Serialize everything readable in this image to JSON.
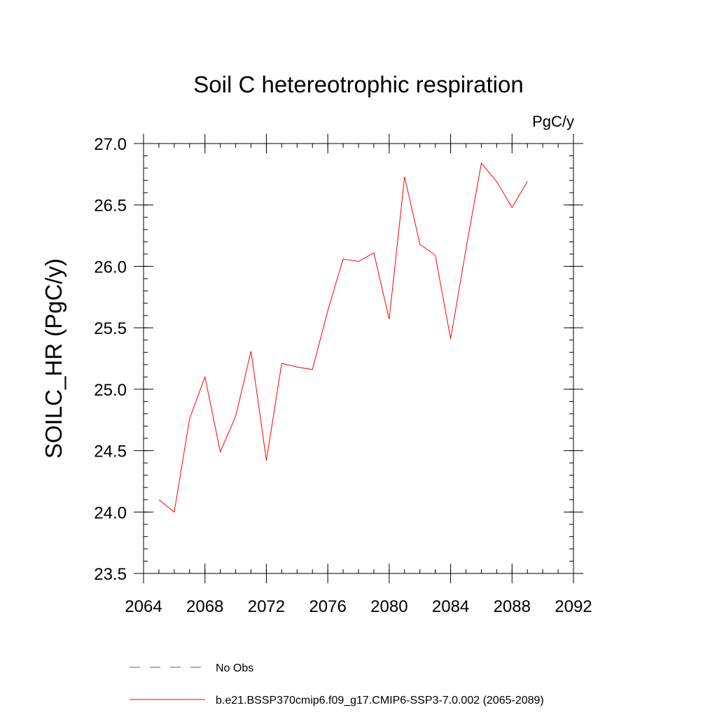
{
  "chart_data": {
    "type": "line",
    "title": "Soil C hetereotrophic respiration",
    "units": "PgC/y",
    "xlabel": "",
    "ylabel": "SOILC_HR  (PgC/y)",
    "xlim": [
      2064,
      2092
    ],
    "ylim": [
      23.5,
      27.0
    ],
    "x_ticks": [
      2064,
      2068,
      2072,
      2076,
      2080,
      2084,
      2088,
      2092
    ],
    "x_tick_labels": [
      "2064",
      "2068",
      "2072",
      "2076",
      "2080",
      "2084",
      "2088",
      "2092"
    ],
    "y_ticks": [
      23.5,
      24.0,
      24.5,
      25.0,
      25.5,
      26.0,
      26.5,
      27.0
    ],
    "y_tick_labels": [
      "23.5",
      "24.0",
      "24.5",
      "25.0",
      "25.5",
      "26.0",
      "26.5",
      "27.0"
    ],
    "grid": false,
    "legend_position": "bottom",
    "series": [
      {
        "name": "No Obs",
        "color": "#5a50c8",
        "dash": "dashed",
        "x": [],
        "y": []
      },
      {
        "name": "b.e21.BSSP370cmip6.f09_g17.CMIP6-SSP3-7.0.002 (2065-2089)",
        "color": "#ff0000",
        "dash": "solid",
        "x": [
          2065,
          2066,
          2067,
          2068,
          2069,
          2070,
          2071,
          2072,
          2073,
          2074,
          2075,
          2076,
          2077,
          2078,
          2079,
          2080,
          2081,
          2082,
          2083,
          2084,
          2085,
          2086,
          2087,
          2088,
          2089
        ],
        "y": [
          24.1,
          24.0,
          24.76,
          25.1,
          24.49,
          24.78,
          25.31,
          24.42,
          25.21,
          25.18,
          25.16,
          25.64,
          26.06,
          26.04,
          26.11,
          25.57,
          26.73,
          26.18,
          26.09,
          25.41,
          26.14,
          26.84,
          26.69,
          26.48,
          26.69
        ]
      }
    ]
  }
}
